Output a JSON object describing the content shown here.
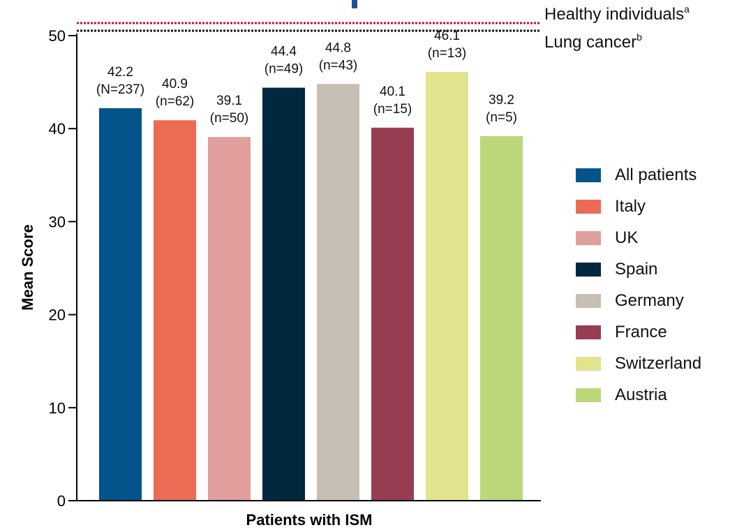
{
  "chart_data": {
    "type": "bar",
    "xlabel": "Patients with ISM",
    "ylabel": "Mean Score",
    "ylim": [
      0,
      50
    ],
    "yticks": [
      0,
      10,
      20,
      30,
      40,
      50
    ],
    "grid": false,
    "legend_position": "right",
    "bars": [
      {
        "category": "All patients",
        "value": 42.2,
        "value_label": "42.2",
        "n_label": "(N=237)",
        "color": "#04538A"
      },
      {
        "category": "Italy",
        "value": 40.9,
        "value_label": "40.9",
        "n_label": "(n=62)",
        "color": "#EC6B55"
      },
      {
        "category": "UK",
        "value": 39.1,
        "value_label": "39.1",
        "n_label": "(n=50)",
        "color": "#E09E9C"
      },
      {
        "category": "Spain",
        "value": 44.4,
        "value_label": "44.4",
        "n_label": "(n=49)",
        "color": "#022840"
      },
      {
        "category": "Germany",
        "value": 44.8,
        "value_label": "44.8",
        "n_label": "(n=43)",
        "color": "#C8BFB4"
      },
      {
        "category": "France",
        "value": 40.1,
        "value_label": "40.1",
        "n_label": "(n=15)",
        "color": "#963D52"
      },
      {
        "category": "Switzerland",
        "value": 46.1,
        "value_label": "46.1",
        "n_label": "(n=13)",
        "color": "#E3E38E"
      },
      {
        "category": "Austria",
        "value": 39.2,
        "value_label": "39.2",
        "n_label": "(n=5)",
        "color": "#BCD77A"
      }
    ],
    "reference_lines": [
      {
        "label": "Healthy individuals",
        "superscript": "a",
        "color": "#C8102E",
        "style": "dotted",
        "value_relative": "above 50"
      },
      {
        "label": "Lung cancer",
        "superscript": "b",
        "color": "#111111",
        "style": "dotted",
        "value_relative": "about 50"
      }
    ]
  }
}
